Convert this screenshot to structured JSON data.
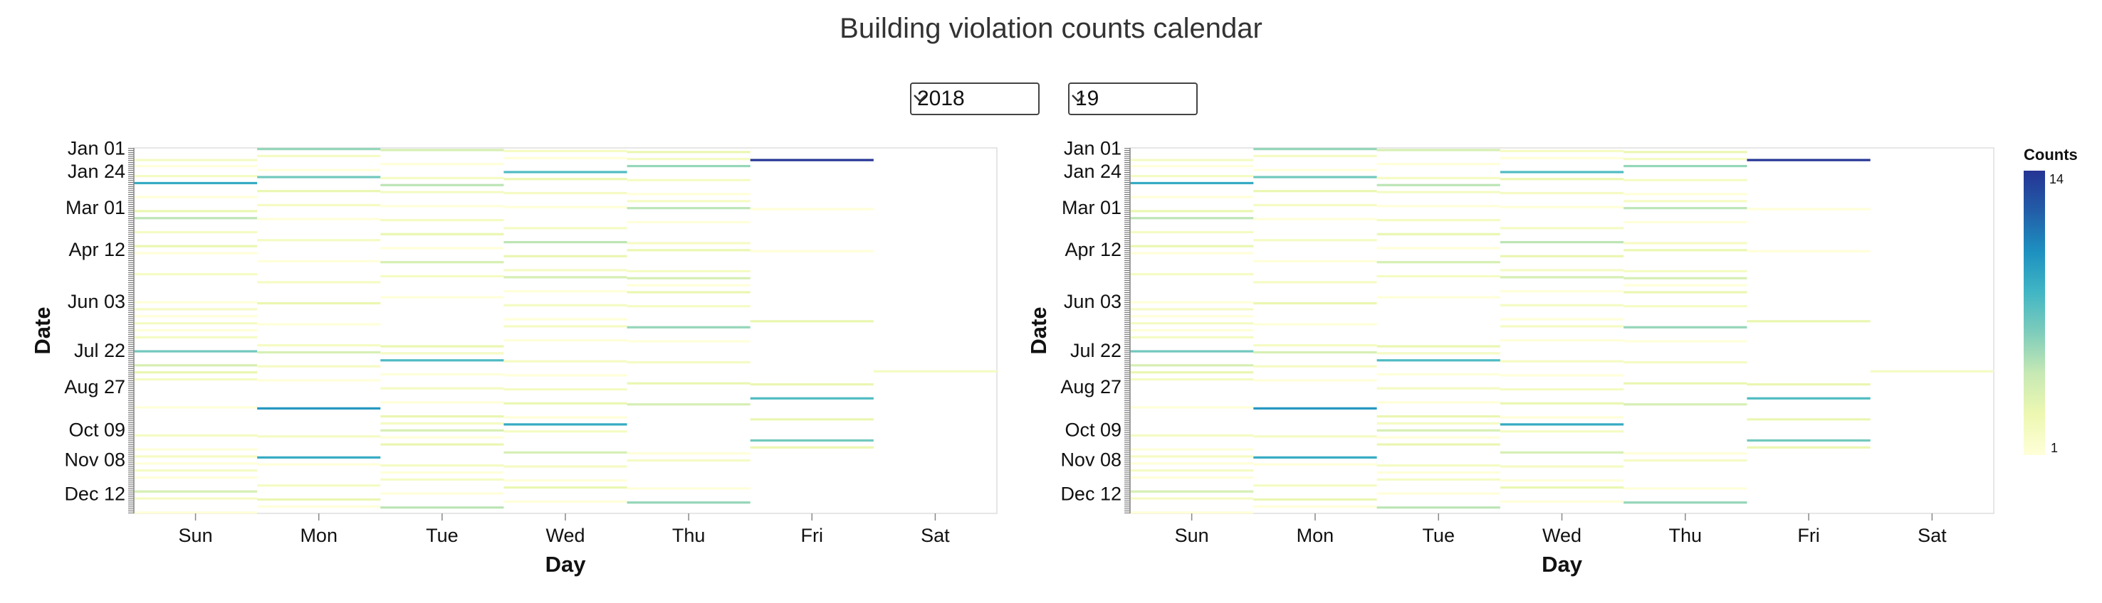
{
  "page": {
    "title": "Building violation counts calendar",
    "controls": {
      "year_select": {
        "value": "2018"
      },
      "day_select": {
        "value": "19"
      }
    }
  },
  "chart_data": [
    {
      "type": "heatmap",
      "xlabel": "Day",
      "ylabel": "Date",
      "x_categories": [
        "Sun",
        "Mon",
        "Tue",
        "Wed",
        "Thu",
        "Fri",
        "Sat"
      ],
      "y_tick_labels": [
        "Jan 01",
        "Jan 24",
        "Mar 01",
        "Apr 12",
        "Jun 03",
        "Jul 22",
        "Aug 27",
        "Oct 09",
        "Nov 08",
        "Dec 12"
      ],
      "y_range": [
        "Jan 01",
        "Dec 31"
      ],
      "grid": false,
      "cells": [
        {
          "day": "Sun",
          "date": "Jan 12",
          "count": 2
        },
        {
          "day": "Sun",
          "date": "Jan 18",
          "count": 1
        },
        {
          "day": "Sun",
          "date": "Jan 28",
          "count": 2
        },
        {
          "day": "Sun",
          "date": "Feb 04",
          "count": 9
        },
        {
          "day": "Sun",
          "date": "Feb 18",
          "count": 1
        },
        {
          "day": "Sun",
          "date": "Mar 04",
          "count": 3
        },
        {
          "day": "Sun",
          "date": "Mar 11",
          "count": 5
        },
        {
          "day": "Sun",
          "date": "Mar 25",
          "count": 2
        },
        {
          "day": "Sun",
          "date": "Apr 08",
          "count": 3
        },
        {
          "day": "Sun",
          "date": "Apr 15",
          "count": 1
        },
        {
          "day": "Sun",
          "date": "May 06",
          "count": 2
        },
        {
          "day": "Sun",
          "date": "Jun 03",
          "count": 1
        },
        {
          "day": "Sun",
          "date": "Jun 10",
          "count": 2
        },
        {
          "day": "Sun",
          "date": "Jun 17",
          "count": 1
        },
        {
          "day": "Sun",
          "date": "Jun 24",
          "count": 2
        },
        {
          "day": "Sun",
          "date": "Jul 01",
          "count": 1
        },
        {
          "day": "Sun",
          "date": "Jul 08",
          "count": 2
        },
        {
          "day": "Sun",
          "date": "Jul 22",
          "count": 7
        },
        {
          "day": "Sun",
          "date": "Aug 05",
          "count": 4
        },
        {
          "day": "Sun",
          "date": "Aug 12",
          "count": 3
        },
        {
          "day": "Sun",
          "date": "Aug 19",
          "count": 2
        },
        {
          "day": "Sun",
          "date": "Sep 16",
          "count": 1
        },
        {
          "day": "Sun",
          "date": "Oct 14",
          "count": 2
        },
        {
          "day": "Sun",
          "date": "Oct 28",
          "count": 1
        },
        {
          "day": "Sun",
          "date": "Nov 04",
          "count": 2
        },
        {
          "day": "Sun",
          "date": "Nov 11",
          "count": 1
        },
        {
          "day": "Sun",
          "date": "Nov 18",
          "count": 2
        },
        {
          "day": "Sun",
          "date": "Nov 25",
          "count": 1
        },
        {
          "day": "Sun",
          "date": "Dec 09",
          "count": 4
        },
        {
          "day": "Sun",
          "date": "Dec 16",
          "count": 2
        },
        {
          "day": "Sun",
          "date": "Dec 30",
          "count": 1
        },
        {
          "day": "Mon",
          "date": "Jan 01",
          "count": 6
        },
        {
          "day": "Mon",
          "date": "Jan 08",
          "count": 2
        },
        {
          "day": "Mon",
          "date": "Jan 22",
          "count": 1
        },
        {
          "day": "Mon",
          "date": "Jan 29",
          "count": 7
        },
        {
          "day": "Mon",
          "date": "Feb 12",
          "count": 3
        },
        {
          "day": "Mon",
          "date": "Feb 26",
          "count": 2
        },
        {
          "day": "Mon",
          "date": "Mar 12",
          "count": 1
        },
        {
          "day": "Mon",
          "date": "Apr 02",
          "count": 2
        },
        {
          "day": "Mon",
          "date": "Apr 23",
          "count": 1
        },
        {
          "day": "Mon",
          "date": "May 14",
          "count": 2
        },
        {
          "day": "Mon",
          "date": "Jun 04",
          "count": 3
        },
        {
          "day": "Mon",
          "date": "Jun 25",
          "count": 1
        },
        {
          "day": "Mon",
          "date": "Jul 16",
          "count": 2
        },
        {
          "day": "Mon",
          "date": "Jul 23",
          "count": 4
        },
        {
          "day": "Mon",
          "date": "Aug 06",
          "count": 2
        },
        {
          "day": "Mon",
          "date": "Aug 20",
          "count": 1
        },
        {
          "day": "Mon",
          "date": "Sep 17",
          "count": 10
        },
        {
          "day": "Mon",
          "date": "Oct 15",
          "count": 2
        },
        {
          "day": "Mon",
          "date": "Nov 05",
          "count": 9
        },
        {
          "day": "Mon",
          "date": "Nov 12",
          "count": 1
        },
        {
          "day": "Mon",
          "date": "Dec 03",
          "count": 2
        },
        {
          "day": "Mon",
          "date": "Dec 17",
          "count": 3
        },
        {
          "day": "Mon",
          "date": "Dec 24",
          "count": 1
        },
        {
          "day": "Tue",
          "date": "Jan 02",
          "count": 4
        },
        {
          "day": "Tue",
          "date": "Jan 16",
          "count": 1
        },
        {
          "day": "Tue",
          "date": "Jan 30",
          "count": 2
        },
        {
          "day": "Tue",
          "date": "Feb 06",
          "count": 5
        },
        {
          "day": "Tue",
          "date": "Feb 13",
          "count": 2
        },
        {
          "day": "Tue",
          "date": "Feb 27",
          "count": 1
        },
        {
          "day": "Tue",
          "date": "Mar 13",
          "count": 2
        },
        {
          "day": "Tue",
          "date": "Mar 27",
          "count": 3
        },
        {
          "day": "Tue",
          "date": "Apr 10",
          "count": 1
        },
        {
          "day": "Tue",
          "date": "Apr 24",
          "count": 4
        },
        {
          "day": "Tue",
          "date": "May 08",
          "count": 2
        },
        {
          "day": "Tue",
          "date": "May 29",
          "count": 1
        },
        {
          "day": "Tue",
          "date": "Jul 17",
          "count": 3
        },
        {
          "day": "Tue",
          "date": "Jul 24",
          "count": 2
        },
        {
          "day": "Tue",
          "date": "Jul 31",
          "count": 8
        },
        {
          "day": "Tue",
          "date": "Aug 14",
          "count": 1
        },
        {
          "day": "Tue",
          "date": "Aug 28",
          "count": 2
        },
        {
          "day": "Tue",
          "date": "Sep 11",
          "count": 1
        },
        {
          "day": "Tue",
          "date": "Sep 25",
          "count": 3
        },
        {
          "day": "Tue",
          "date": "Oct 02",
          "count": 2
        },
        {
          "day": "Tue",
          "date": "Oct 09",
          "count": 4
        },
        {
          "day": "Tue",
          "date": "Oct 16",
          "count": 1
        },
        {
          "day": "Tue",
          "date": "Oct 23",
          "count": 3
        },
        {
          "day": "Tue",
          "date": "Nov 13",
          "count": 2
        },
        {
          "day": "Tue",
          "date": "Nov 20",
          "count": 1
        },
        {
          "day": "Tue",
          "date": "Nov 27",
          "count": 2
        },
        {
          "day": "Tue",
          "date": "Dec 11",
          "count": 1
        },
        {
          "day": "Tue",
          "date": "Dec 25",
          "count": 5
        },
        {
          "day": "Wed",
          "date": "Jan 03",
          "count": 2
        },
        {
          "day": "Wed",
          "date": "Jan 10",
          "count": 1
        },
        {
          "day": "Wed",
          "date": "Jan 24",
          "count": 8
        },
        {
          "day": "Wed",
          "date": "Jan 31",
          "count": 3
        },
        {
          "day": "Wed",
          "date": "Feb 14",
          "count": 2
        },
        {
          "day": "Wed",
          "date": "Feb 28",
          "count": 1
        },
        {
          "day": "Wed",
          "date": "Mar 21",
          "count": 2
        },
        {
          "day": "Wed",
          "date": "Apr 04",
          "count": 5
        },
        {
          "day": "Wed",
          "date": "Apr 18",
          "count": 3
        },
        {
          "day": "Wed",
          "date": "May 02",
          "count": 2
        },
        {
          "day": "Wed",
          "date": "May 09",
          "count": 4
        },
        {
          "day": "Wed",
          "date": "May 23",
          "count": 1
        },
        {
          "day": "Wed",
          "date": "Jun 06",
          "count": 2
        },
        {
          "day": "Wed",
          "date": "Jun 20",
          "count": 1
        },
        {
          "day": "Wed",
          "date": "Jun 27",
          "count": 2
        },
        {
          "day": "Wed",
          "date": "Jul 11",
          "count": 1
        },
        {
          "day": "Wed",
          "date": "Aug 01",
          "count": 2
        },
        {
          "day": "Wed",
          "date": "Aug 15",
          "count": 1
        },
        {
          "day": "Wed",
          "date": "Aug 29",
          "count": 2
        },
        {
          "day": "Wed",
          "date": "Sep 12",
          "count": 3
        },
        {
          "day": "Wed",
          "date": "Sep 26",
          "count": 1
        },
        {
          "day": "Wed",
          "date": "Oct 03",
          "count": 9
        },
        {
          "day": "Wed",
          "date": "Oct 10",
          "count": 2
        },
        {
          "day": "Wed",
          "date": "Oct 31",
          "count": 4
        },
        {
          "day": "Wed",
          "date": "Nov 14",
          "count": 2
        },
        {
          "day": "Wed",
          "date": "Nov 28",
          "count": 1
        },
        {
          "day": "Wed",
          "date": "Dec 05",
          "count": 3
        },
        {
          "day": "Wed",
          "date": "Dec 19",
          "count": 1
        },
        {
          "day": "Thu",
          "date": "Jan 04",
          "count": 3
        },
        {
          "day": "Thu",
          "date": "Jan 11",
          "count": 2
        },
        {
          "day": "Thu",
          "date": "Jan 18",
          "count": 6
        },
        {
          "day": "Thu",
          "date": "Feb 01",
          "count": 2
        },
        {
          "day": "Thu",
          "date": "Feb 15",
          "count": 1
        },
        {
          "day": "Thu",
          "date": "Feb 22",
          "count": 2
        },
        {
          "day": "Thu",
          "date": "Mar 01",
          "count": 5
        },
        {
          "day": "Thu",
          "date": "Mar 15",
          "count": 1
        },
        {
          "day": "Thu",
          "date": "Apr 05",
          "count": 2
        },
        {
          "day": "Thu",
          "date": "Apr 12",
          "count": 3
        },
        {
          "day": "Thu",
          "date": "May 03",
          "count": 2
        },
        {
          "day": "Thu",
          "date": "May 10",
          "count": 4
        },
        {
          "day": "Thu",
          "date": "May 17",
          "count": 1
        },
        {
          "day": "Thu",
          "date": "May 24",
          "count": 3
        },
        {
          "day": "Thu",
          "date": "Jun 07",
          "count": 2
        },
        {
          "day": "Thu",
          "date": "Jun 28",
          "count": 6
        },
        {
          "day": "Thu",
          "date": "Jul 12",
          "count": 1
        },
        {
          "day": "Thu",
          "date": "Aug 02",
          "count": 2
        },
        {
          "day": "Thu",
          "date": "Aug 23",
          "count": 3
        },
        {
          "day": "Thu",
          "date": "Sep 13",
          "count": 4
        },
        {
          "day": "Thu",
          "date": "Nov 01",
          "count": 1
        },
        {
          "day": "Thu",
          "date": "Nov 08",
          "count": 2
        },
        {
          "day": "Thu",
          "date": "Dec 06",
          "count": 1
        },
        {
          "day": "Thu",
          "date": "Dec 20",
          "count": 6
        },
        {
          "day": "Fri",
          "date": "Jan 12",
          "count": 14
        },
        {
          "day": "Fri",
          "date": "Mar 02",
          "count": 1
        },
        {
          "day": "Fri",
          "date": "Apr 13",
          "count": 1
        },
        {
          "day": "Fri",
          "date": "Jun 22",
          "count": 3
        },
        {
          "day": "Fri",
          "date": "Aug 24",
          "count": 3
        },
        {
          "day": "Fri",
          "date": "Sep 07",
          "count": 8
        },
        {
          "day": "Fri",
          "date": "Sep 28",
          "count": 3
        },
        {
          "day": "Fri",
          "date": "Oct 19",
          "count": 7
        },
        {
          "day": "Fri",
          "date": "Oct 26",
          "count": 3
        },
        {
          "day": "Sat",
          "date": "Aug 11",
          "count": 2
        }
      ],
      "colorbar": {
        "title": "Counts",
        "min": 1,
        "max": 14
      },
      "colorscale": [
        "#ffffd9",
        "#edf8b1",
        "#c7e9b4",
        "#7fcdbb",
        "#41b6c4",
        "#1d91c0",
        "#225ea8",
        "#253494"
      ]
    }
  ]
}
